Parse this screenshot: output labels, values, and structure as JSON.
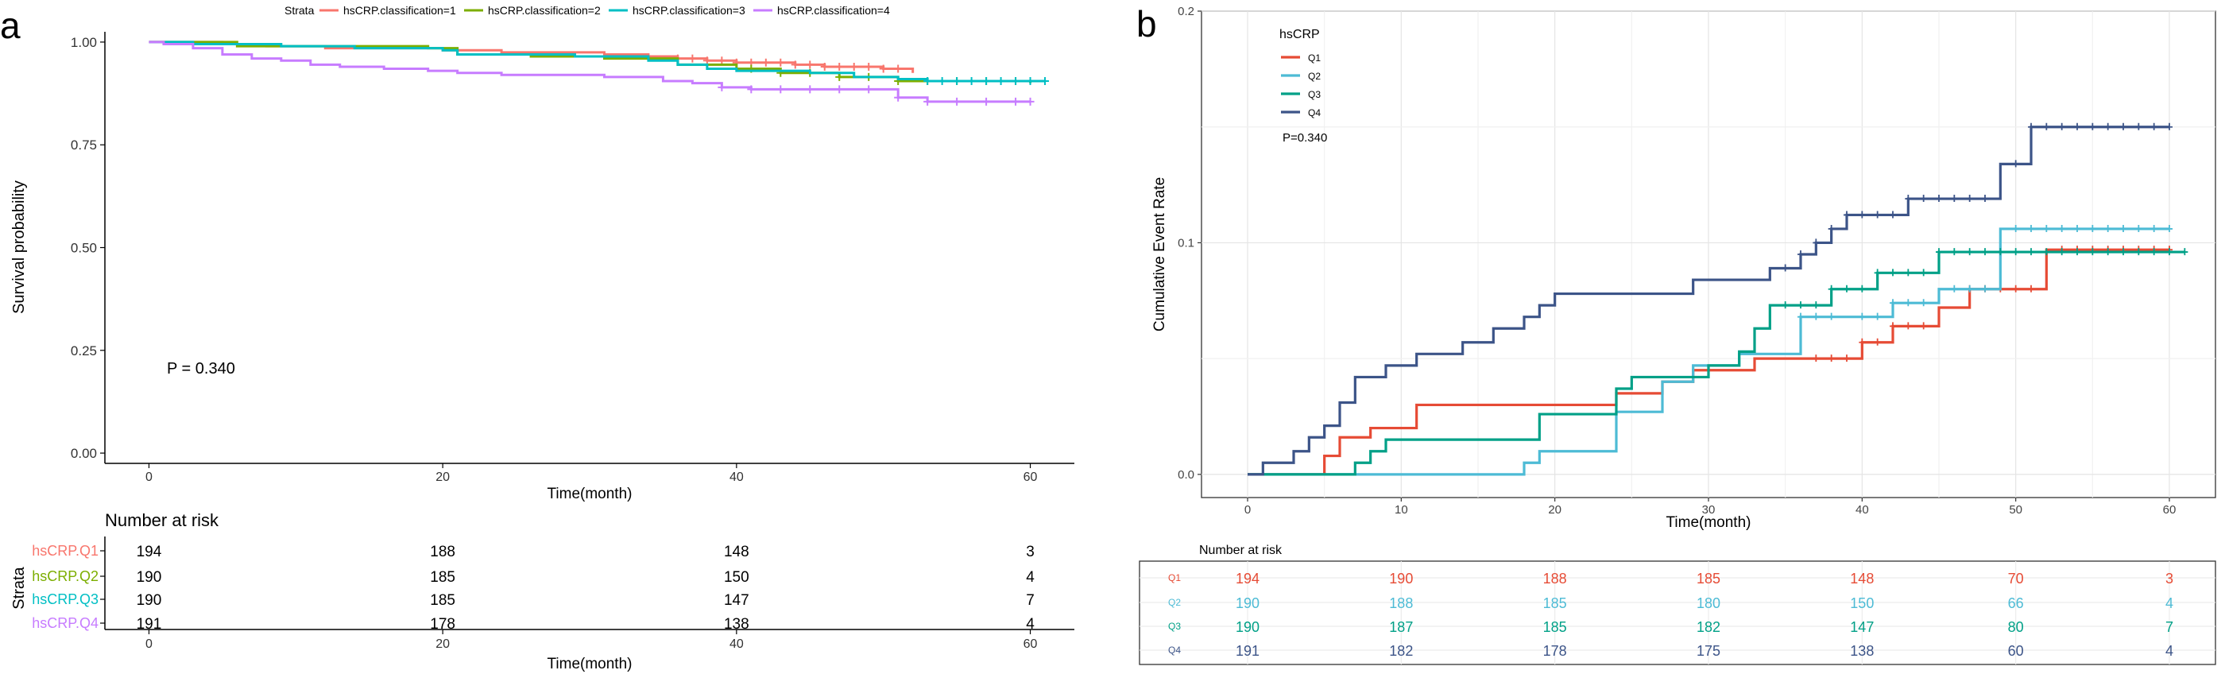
{
  "panel_a": {
    "letter": "a",
    "legend_title": "Strata",
    "legend": [
      {
        "label": "hsCRP.classification=1",
        "color": "#f8766d"
      },
      {
        "label": "hsCRP.classification=2",
        "color": "#7cae00"
      },
      {
        "label": "hsCRP.classification=3",
        "color": "#00bfc4"
      },
      {
        "label": "hsCRP.classification=4",
        "color": "#c77cff"
      }
    ],
    "p_value": "P = 0.340",
    "risk_title": "Number at risk",
    "risk_axis_label": "Strata",
    "risk_xlabel": "Time(month)",
    "risk_ticks": [
      "0",
      "20",
      "40",
      "60"
    ],
    "risk_rows": [
      {
        "label": "hsCRP.Q1",
        "color": "#f8766d",
        "values": [
          "194",
          "188",
          "148",
          "3"
        ]
      },
      {
        "label": "hsCRP.Q2",
        "color": "#7cae00",
        "values": [
          "190",
          "185",
          "150",
          "4"
        ]
      },
      {
        "label": "hsCRP.Q3",
        "color": "#00bfc4",
        "values": [
          "190",
          "185",
          "147",
          "7"
        ]
      },
      {
        "label": "hsCRP.Q4",
        "color": "#c77cff",
        "values": [
          "191",
          "178",
          "138",
          "4"
        ]
      }
    ]
  },
  "panel_b": {
    "letter": "b",
    "legend_title": "hsCRP",
    "p_value": "P=0.340",
    "risk_title": "Number at risk",
    "risk_rows": [
      {
        "label": "Q1",
        "color": "#e64b35",
        "values": [
          "194",
          "190",
          "188",
          "185",
          "148",
          "70",
          "3"
        ]
      },
      {
        "label": "Q2",
        "color": "#4dbbd5",
        "values": [
          "190",
          "188",
          "185",
          "180",
          "150",
          "66",
          "4"
        ]
      },
      {
        "label": "Q3",
        "color": "#00a087",
        "values": [
          "190",
          "187",
          "185",
          "182",
          "147",
          "80",
          "7"
        ]
      },
      {
        "label": "Q4",
        "color": "#3c5488",
        "values": [
          "191",
          "182",
          "178",
          "175",
          "138",
          "60",
          "4"
        ]
      }
    ]
  },
  "chart_data": [
    {
      "type": "line",
      "title": "",
      "xlabel": "Time(month)",
      "ylabel": "Survival probability",
      "xlim": [
        -3,
        63
      ],
      "ylim": [
        -0.025,
        1.025
      ],
      "xticks": [
        0,
        20,
        40,
        60
      ],
      "yticks": [
        0.0,
        0.25,
        0.5,
        0.75,
        1.0
      ],
      "ytick_labels": [
        "0.00",
        "0.25",
        "0.50",
        "0.75",
        "1.00"
      ],
      "grid": false,
      "series": [
        {
          "name": "hsCRP.classification=1",
          "color": "#f8766d",
          "points": [
            [
              0,
              1.0
            ],
            [
              5,
              0.995
            ],
            [
              8,
              0.99
            ],
            [
              12,
              0.985
            ],
            [
              20,
              0.98
            ],
            [
              24,
              0.975
            ],
            [
              31,
              0.97
            ],
            [
              34,
              0.965
            ],
            [
              36,
              0.96
            ],
            [
              38,
              0.955
            ],
            [
              40,
              0.95
            ],
            [
              44,
              0.945
            ],
            [
              46,
              0.94
            ],
            [
              50,
              0.935
            ],
            [
              52,
              0.925
            ]
          ],
          "censor": [
            36,
            37,
            38,
            39,
            40,
            41,
            42,
            43,
            44,
            45,
            46,
            47,
            48,
            49,
            50,
            51
          ]
        },
        {
          "name": "hsCRP.classification=2",
          "color": "#7cae00",
          "points": [
            [
              0,
              1.0
            ],
            [
              6,
              0.99
            ],
            [
              10,
              0.99
            ],
            [
              19,
              0.985
            ],
            [
              21,
              0.97
            ],
            [
              26,
              0.965
            ],
            [
              31,
              0.96
            ],
            [
              36,
              0.945
            ],
            [
              40,
              0.935
            ],
            [
              43,
              0.925
            ],
            [
              47,
              0.915
            ],
            [
              51,
              0.905
            ],
            [
              60,
              0.9
            ]
          ],
          "censor": [
            41,
            43,
            45,
            47,
            49,
            51,
            53,
            55,
            57,
            59
          ]
        },
        {
          "name": "hsCRP.classification=3",
          "color": "#00bfc4",
          "points": [
            [
              0,
              1.0
            ],
            [
              3,
              0.995
            ],
            [
              9,
              0.99
            ],
            [
              14,
              0.985
            ],
            [
              20,
              0.98
            ],
            [
              21,
              0.97
            ],
            [
              29,
              0.965
            ],
            [
              34,
              0.955
            ],
            [
              36,
              0.945
            ],
            [
              38,
              0.935
            ],
            [
              40,
              0.93
            ],
            [
              45,
              0.925
            ],
            [
              48,
              0.915
            ],
            [
              51,
              0.91
            ],
            [
              53,
              0.905
            ],
            [
              61,
              0.905
            ]
          ],
          "censor": [
            53,
            54,
            55,
            56,
            57,
            58,
            59,
            60,
            61
          ]
        },
        {
          "name": "hsCRP.classification=4",
          "color": "#c77cff",
          "points": [
            [
              0,
              1.0
            ],
            [
              1,
              0.995
            ],
            [
              3,
              0.985
            ],
            [
              5,
              0.97
            ],
            [
              7,
              0.96
            ],
            [
              9,
              0.955
            ],
            [
              11,
              0.945
            ],
            [
              13,
              0.94
            ],
            [
              16,
              0.935
            ],
            [
              19,
              0.93
            ],
            [
              21,
              0.925
            ],
            [
              24,
              0.92
            ],
            [
              31,
              0.915
            ],
            [
              35,
              0.905
            ],
            [
              37,
              0.9
            ],
            [
              39,
              0.89
            ],
            [
              41,
              0.885
            ],
            [
              51,
              0.865
            ],
            [
              53,
              0.855
            ],
            [
              60,
              0.855
            ]
          ],
          "censor": [
            39,
            41,
            43,
            45,
            47,
            49,
            51,
            53,
            55,
            57,
            59,
            60
          ]
        }
      ]
    },
    {
      "type": "line",
      "title": "",
      "xlabel": "Time(month)",
      "ylabel": "Cumulative Event Rate",
      "xlim": [
        -3,
        63
      ],
      "ylim": [
        -0.01,
        0.2
      ],
      "xticks": [
        0,
        10,
        20,
        30,
        40,
        50,
        60
      ],
      "yticks": [
        0.0,
        0.1,
        0.2
      ],
      "ytick_labels": [
        "0.0",
        "0.1",
        "0.2"
      ],
      "grid": true,
      "series": [
        {
          "name": "Q1",
          "color": "#e64b35",
          "points": [
            [
              0,
              0.0
            ],
            [
              5,
              0.008
            ],
            [
              6,
              0.016
            ],
            [
              8,
              0.02
            ],
            [
              11,
              0.03
            ],
            [
              24,
              0.035
            ],
            [
              27,
              0.04
            ],
            [
              29,
              0.045
            ],
            [
              33,
              0.05
            ],
            [
              40,
              0.057
            ],
            [
              42,
              0.064
            ],
            [
              45,
              0.072
            ],
            [
              47,
              0.08
            ],
            [
              52,
              0.097
            ],
            [
              60,
              0.097
            ]
          ],
          "censor": [
            37,
            38,
            39,
            40,
            41,
            42,
            43,
            44,
            47,
            48,
            49,
            50,
            51,
            53,
            54,
            55,
            56,
            57,
            58,
            59,
            60
          ]
        },
        {
          "name": "Q2",
          "color": "#4dbbd5",
          "points": [
            [
              0,
              0.0
            ],
            [
              18,
              0.005
            ],
            [
              19,
              0.01
            ],
            [
              24,
              0.027
            ],
            [
              27,
              0.04
            ],
            [
              29,
              0.047
            ],
            [
              32,
              0.052
            ],
            [
              36,
              0.068
            ],
            [
              42,
              0.074
            ],
            [
              45,
              0.08
            ],
            [
              49,
              0.106
            ],
            [
              60,
              0.106
            ]
          ],
          "censor": [
            36,
            37,
            38,
            40,
            41,
            42,
            43,
            44,
            46,
            47,
            48,
            50,
            51,
            52,
            53,
            54,
            55,
            56,
            57,
            58,
            59,
            60
          ]
        },
        {
          "name": "Q3",
          "color": "#00a087",
          "points": [
            [
              0,
              0.0
            ],
            [
              7,
              0.005
            ],
            [
              8,
              0.01
            ],
            [
              9,
              0.015
            ],
            [
              19,
              0.026
            ],
            [
              24,
              0.037
            ],
            [
              25,
              0.042
            ],
            [
              30,
              0.047
            ],
            [
              32,
              0.053
            ],
            [
              33,
              0.063
            ],
            [
              34,
              0.073
            ],
            [
              38,
              0.08
            ],
            [
              41,
              0.087
            ],
            [
              45,
              0.096
            ],
            [
              61,
              0.096
            ]
          ],
          "censor": [
            35,
            36,
            37,
            38,
            39,
            40,
            41,
            42,
            43,
            44,
            45,
            46,
            47,
            48,
            49,
            50,
            51,
            52,
            53,
            54,
            55,
            56,
            57,
            58,
            59,
            60,
            61
          ]
        },
        {
          "name": "Q4",
          "color": "#3c5488",
          "points": [
            [
              0,
              0.0
            ],
            [
              1,
              0.005
            ],
            [
              3,
              0.01
            ],
            [
              4,
              0.016
            ],
            [
              5,
              0.021
            ],
            [
              6,
              0.031
            ],
            [
              7,
              0.042
            ],
            [
              9,
              0.047
            ],
            [
              11,
              0.052
            ],
            [
              14,
              0.057
            ],
            [
              16,
              0.063
            ],
            [
              18,
              0.068
            ],
            [
              19,
              0.073
            ],
            [
              20,
              0.078
            ],
            [
              29,
              0.084
            ],
            [
              34,
              0.089
            ],
            [
              36,
              0.095
            ],
            [
              37,
              0.1
            ],
            [
              38,
              0.106
            ],
            [
              39,
              0.112
            ],
            [
              43,
              0.119
            ],
            [
              49,
              0.134
            ],
            [
              51,
              0.15
            ],
            [
              60,
              0.15
            ]
          ],
          "censor": [
            35,
            36,
            37,
            38,
            39,
            40,
            41,
            42,
            43,
            44,
            45,
            46,
            47,
            48,
            50,
            51,
            52,
            53,
            54,
            55,
            56,
            57,
            58,
            59,
            60
          ]
        }
      ]
    }
  ]
}
